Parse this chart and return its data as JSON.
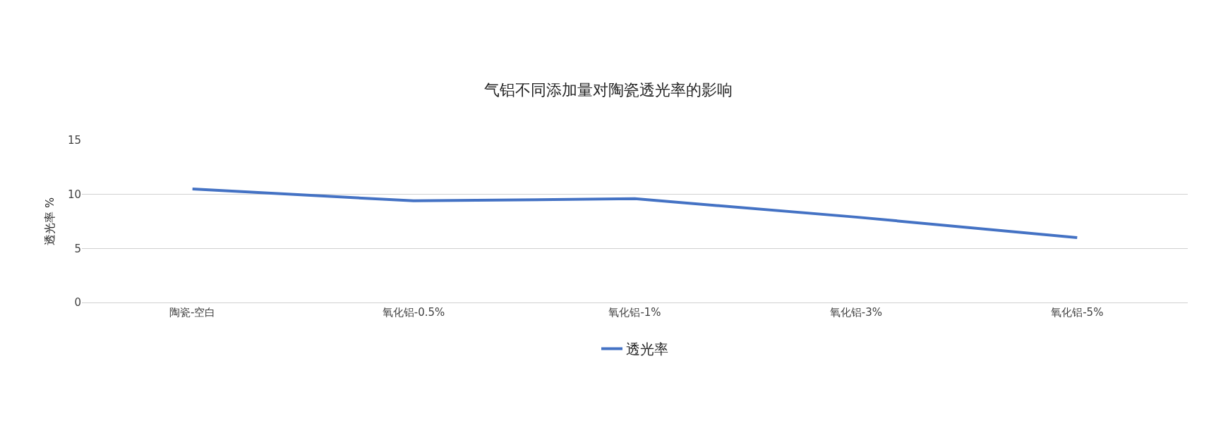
{
  "chart_data": {
    "type": "line",
    "title": "气铝不同添加量对陶瓷透光率的影响",
    "ylabel": "透光率 %",
    "categories": [
      "陶瓷-空白",
      "氧化铝-0.5%",
      "氧化铝-1%",
      "氧化铝-3%",
      "氧化铝-5%"
    ],
    "series": [
      {
        "name": "透光率",
        "color": "#4472c4",
        "values": [
          10.5,
          9.4,
          9.6,
          7.9,
          6.0
        ]
      }
    ],
    "ylim": [
      0,
      15
    ],
    "yticks": [
      0,
      5,
      10,
      15
    ],
    "grid": "y",
    "legend": "bottom",
    "marker": "none",
    "line_style": "solid"
  }
}
